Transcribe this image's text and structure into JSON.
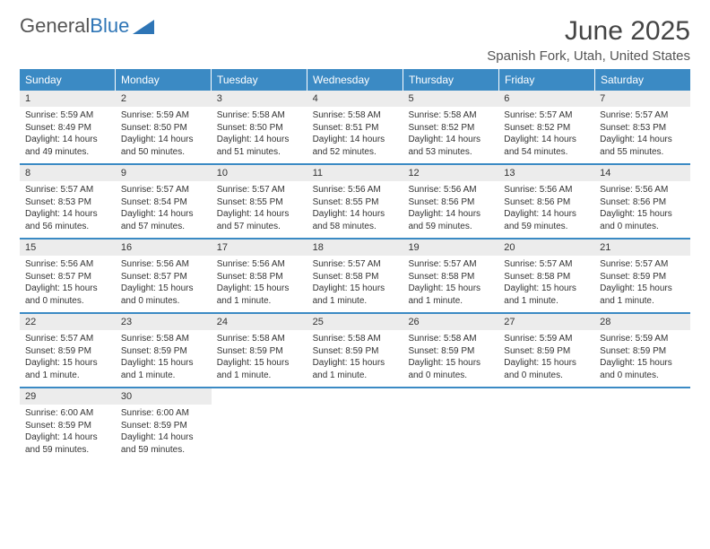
{
  "brand": {
    "word1": "General",
    "word2": "Blue"
  },
  "title": "June 2025",
  "location": "Spanish Fork, Utah, United States",
  "colors": {
    "header_bg": "#3b8ac4",
    "header_text": "#ffffff",
    "daynum_bg": "#ececec",
    "week_divider": "#3b8ac4",
    "body_text": "#333333",
    "brand_gray": "#555555",
    "brand_blue": "#2e75b6"
  },
  "weekdays": [
    "Sunday",
    "Monday",
    "Tuesday",
    "Wednesday",
    "Thursday",
    "Friday",
    "Saturday"
  ],
  "days": [
    {
      "n": 1,
      "sunrise": "5:59 AM",
      "sunset": "8:49 PM",
      "daylight": "14 hours and 49 minutes."
    },
    {
      "n": 2,
      "sunrise": "5:59 AM",
      "sunset": "8:50 PM",
      "daylight": "14 hours and 50 minutes."
    },
    {
      "n": 3,
      "sunrise": "5:58 AM",
      "sunset": "8:50 PM",
      "daylight": "14 hours and 51 minutes."
    },
    {
      "n": 4,
      "sunrise": "5:58 AM",
      "sunset": "8:51 PM",
      "daylight": "14 hours and 52 minutes."
    },
    {
      "n": 5,
      "sunrise": "5:58 AM",
      "sunset": "8:52 PM",
      "daylight": "14 hours and 53 minutes."
    },
    {
      "n": 6,
      "sunrise": "5:57 AM",
      "sunset": "8:52 PM",
      "daylight": "14 hours and 54 minutes."
    },
    {
      "n": 7,
      "sunrise": "5:57 AM",
      "sunset": "8:53 PM",
      "daylight": "14 hours and 55 minutes."
    },
    {
      "n": 8,
      "sunrise": "5:57 AM",
      "sunset": "8:53 PM",
      "daylight": "14 hours and 56 minutes."
    },
    {
      "n": 9,
      "sunrise": "5:57 AM",
      "sunset": "8:54 PM",
      "daylight": "14 hours and 57 minutes."
    },
    {
      "n": 10,
      "sunrise": "5:57 AM",
      "sunset": "8:55 PM",
      "daylight": "14 hours and 57 minutes."
    },
    {
      "n": 11,
      "sunrise": "5:56 AM",
      "sunset": "8:55 PM",
      "daylight": "14 hours and 58 minutes."
    },
    {
      "n": 12,
      "sunrise": "5:56 AM",
      "sunset": "8:56 PM",
      "daylight": "14 hours and 59 minutes."
    },
    {
      "n": 13,
      "sunrise": "5:56 AM",
      "sunset": "8:56 PM",
      "daylight": "14 hours and 59 minutes."
    },
    {
      "n": 14,
      "sunrise": "5:56 AM",
      "sunset": "8:56 PM",
      "daylight": "15 hours and 0 minutes."
    },
    {
      "n": 15,
      "sunrise": "5:56 AM",
      "sunset": "8:57 PM",
      "daylight": "15 hours and 0 minutes."
    },
    {
      "n": 16,
      "sunrise": "5:56 AM",
      "sunset": "8:57 PM",
      "daylight": "15 hours and 0 minutes."
    },
    {
      "n": 17,
      "sunrise": "5:56 AM",
      "sunset": "8:58 PM",
      "daylight": "15 hours and 1 minute."
    },
    {
      "n": 18,
      "sunrise": "5:57 AM",
      "sunset": "8:58 PM",
      "daylight": "15 hours and 1 minute."
    },
    {
      "n": 19,
      "sunrise": "5:57 AM",
      "sunset": "8:58 PM",
      "daylight": "15 hours and 1 minute."
    },
    {
      "n": 20,
      "sunrise": "5:57 AM",
      "sunset": "8:58 PM",
      "daylight": "15 hours and 1 minute."
    },
    {
      "n": 21,
      "sunrise": "5:57 AM",
      "sunset": "8:59 PM",
      "daylight": "15 hours and 1 minute."
    },
    {
      "n": 22,
      "sunrise": "5:57 AM",
      "sunset": "8:59 PM",
      "daylight": "15 hours and 1 minute."
    },
    {
      "n": 23,
      "sunrise": "5:58 AM",
      "sunset": "8:59 PM",
      "daylight": "15 hours and 1 minute."
    },
    {
      "n": 24,
      "sunrise": "5:58 AM",
      "sunset": "8:59 PM",
      "daylight": "15 hours and 1 minute."
    },
    {
      "n": 25,
      "sunrise": "5:58 AM",
      "sunset": "8:59 PM",
      "daylight": "15 hours and 1 minute."
    },
    {
      "n": 26,
      "sunrise": "5:58 AM",
      "sunset": "8:59 PM",
      "daylight": "15 hours and 0 minutes."
    },
    {
      "n": 27,
      "sunrise": "5:59 AM",
      "sunset": "8:59 PM",
      "daylight": "15 hours and 0 minutes."
    },
    {
      "n": 28,
      "sunrise": "5:59 AM",
      "sunset": "8:59 PM",
      "daylight": "15 hours and 0 minutes."
    },
    {
      "n": 29,
      "sunrise": "6:00 AM",
      "sunset": "8:59 PM",
      "daylight": "14 hours and 59 minutes."
    },
    {
      "n": 30,
      "sunrise": "6:00 AM",
      "sunset": "8:59 PM",
      "daylight": "14 hours and 59 minutes."
    }
  ],
  "labels": {
    "sunrise": "Sunrise:",
    "sunset": "Sunset:",
    "daylight": "Daylight:"
  }
}
